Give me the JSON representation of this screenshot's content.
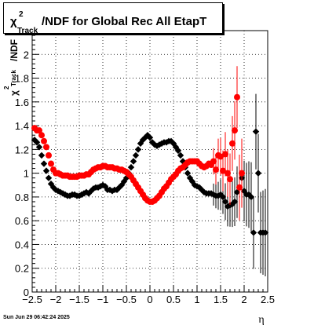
{
  "chart_data": {
    "type": "scatter",
    "title": {
      "base": "χ",
      "sup": "2",
      "sub": "Track",
      "rest": "/NDF for Global Rec All EtapT"
    },
    "ylabel": {
      "base": "χ",
      "sup": "2",
      "sub": "Track",
      "rest": "/NDF"
    },
    "xlabel": "η",
    "xlim": [
      -2.5,
      2.5
    ],
    "ylim": [
      0,
      2.2
    ],
    "xticks": [
      -2.5,
      -2,
      -1.5,
      -1,
      -0.5,
      0,
      0.5,
      1,
      1.5,
      2,
      2.5
    ],
    "xtick_labels": [
      "−2.5",
      "−2",
      "−1.5",
      "−1",
      "−0.5",
      "0",
      "0.5",
      "1",
      "1.5",
      "2",
      "2.5"
    ],
    "yticks": [
      0,
      0.2,
      0.4,
      0.6,
      0.8,
      1,
      1.2,
      1.4,
      1.6,
      1.8,
      2
    ],
    "ytick_labels": [
      "0",
      "0.2",
      "0.4",
      "0.6",
      "0.8",
      "1",
      "1.2",
      "1.4",
      "1.6",
      "1.8",
      "2"
    ],
    "grid": true,
    "series": [
      {
        "color": "#000000",
        "marker": "diamond",
        "points": [
          [
            -2.45,
            1.28
          ],
          [
            -2.4,
            1.26
          ],
          [
            -2.35,
            1.22
          ],
          [
            -2.3,
            1.15
          ],
          [
            -2.25,
            1.08
          ],
          [
            -2.2,
            1.02
          ],
          [
            -2.15,
            0.96
          ],
          [
            -2.1,
            0.91
          ],
          [
            -2.05,
            0.88
          ],
          [
            -2.0,
            0.86
          ],
          [
            -1.95,
            0.85
          ],
          [
            -1.9,
            0.84
          ],
          [
            -1.85,
            0.83
          ],
          [
            -1.8,
            0.82
          ],
          [
            -1.75,
            0.81
          ],
          [
            -1.7,
            0.81
          ],
          [
            -1.65,
            0.82
          ],
          [
            -1.6,
            0.82
          ],
          [
            -1.55,
            0.81
          ],
          [
            -1.5,
            0.81
          ],
          [
            -1.45,
            0.82
          ],
          [
            -1.4,
            0.83
          ],
          [
            -1.35,
            0.84
          ],
          [
            -1.3,
            0.83
          ],
          [
            -1.25,
            0.85
          ],
          [
            -1.2,
            0.87
          ],
          [
            -1.15,
            0.88
          ],
          [
            -1.1,
            0.88
          ],
          [
            -1.05,
            0.89
          ],
          [
            -1.0,
            0.9
          ],
          [
            -0.95,
            0.89
          ],
          [
            -0.9,
            0.86
          ],
          [
            -0.85,
            0.86
          ],
          [
            -0.8,
            0.85
          ],
          [
            -0.75,
            0.86
          ],
          [
            -0.7,
            0.86
          ],
          [
            -0.65,
            0.88
          ],
          [
            -0.6,
            0.9
          ],
          [
            -0.55,
            0.93
          ],
          [
            -0.5,
            0.96
          ],
          [
            -0.45,
            1.0
          ],
          [
            -0.4,
            1.05
          ],
          [
            -0.35,
            1.1
          ],
          [
            -0.3,
            1.15
          ],
          [
            -0.25,
            1.2
          ],
          [
            -0.2,
            1.25
          ],
          [
            -0.15,
            1.28
          ],
          [
            -0.1,
            1.3
          ],
          [
            -0.05,
            1.32
          ],
          [
            0.0,
            1.3
          ],
          [
            0.05,
            1.26
          ],
          [
            0.1,
            1.24
          ],
          [
            0.15,
            1.23
          ],
          [
            0.2,
            1.24
          ],
          [
            0.25,
            1.25
          ],
          [
            0.3,
            1.26
          ],
          [
            0.35,
            1.26
          ],
          [
            0.4,
            1.27
          ],
          [
            0.45,
            1.27
          ],
          [
            0.5,
            1.25
          ],
          [
            0.55,
            1.22
          ],
          [
            0.6,
            1.19
          ],
          [
            0.65,
            1.15
          ],
          [
            0.7,
            1.1
          ],
          [
            0.75,
            1.05
          ],
          [
            0.8,
            1.0
          ],
          [
            0.85,
            0.96
          ],
          [
            0.9,
            0.93
          ],
          [
            0.95,
            0.9
          ],
          [
            1.0,
            0.89
          ],
          [
            1.05,
            0.88
          ],
          [
            1.1,
            0.86
          ],
          [
            1.15,
            0.84
          ],
          [
            1.2,
            0.83
          ],
          [
            1.25,
            0.83
          ],
          [
            1.3,
            0.83
          ],
          [
            1.35,
            0.82
          ],
          [
            1.4,
            0.81
          ],
          [
            1.45,
            0.81
          ],
          [
            1.5,
            0.82
          ],
          [
            1.55,
            0.8
          ],
          [
            1.6,
            0.76
          ],
          [
            1.65,
            0.72
          ],
          [
            1.7,
            0.73
          ],
          [
            1.75,
            0.74
          ],
          [
            1.8,
            0.76
          ],
          [
            1.85,
            0.84
          ],
          [
            1.9,
            0.88
          ],
          [
            1.95,
            0.96
          ],
          [
            2.0,
            0.85
          ],
          [
            2.05,
            0.82
          ],
          [
            2.1,
            0.82
          ],
          [
            2.15,
            0.8
          ],
          [
            2.2,
            0.5
          ],
          [
            2.25,
            1.35
          ],
          [
            2.3,
            1.0
          ],
          [
            2.35,
            0.5
          ],
          [
            2.4,
            0.5
          ],
          [
            2.45,
            0.5
          ]
        ]
      },
      {
        "color": "#ff0000",
        "marker": "circle",
        "points": [
          [
            -2.45,
            1.38
          ],
          [
            -2.4,
            1.36
          ],
          [
            -2.35,
            1.36
          ],
          [
            -2.3,
            1.32
          ],
          [
            -2.25,
            1.27
          ],
          [
            -2.2,
            1.22
          ],
          [
            -2.15,
            1.15
          ],
          [
            -2.1,
            1.08
          ],
          [
            -2.05,
            1.03
          ],
          [
            -2.0,
            1.0
          ],
          [
            -1.95,
            1.0
          ],
          [
            -1.9,
            0.99
          ],
          [
            -1.85,
            0.98
          ],
          [
            -1.8,
            0.98
          ],
          [
            -1.75,
            0.98
          ],
          [
            -1.7,
            0.97
          ],
          [
            -1.65,
            0.97
          ],
          [
            -1.6,
            0.97
          ],
          [
            -1.55,
            0.97
          ],
          [
            -1.5,
            0.98
          ],
          [
            -1.45,
            0.98
          ],
          [
            -1.4,
            0.98
          ],
          [
            -1.35,
            0.99
          ],
          [
            -1.3,
            0.99
          ],
          [
            -1.25,
            1.01
          ],
          [
            -1.2,
            1.03
          ],
          [
            -1.15,
            1.04
          ],
          [
            -1.1,
            1.05
          ],
          [
            -1.05,
            1.05
          ],
          [
            -1.0,
            1.06
          ],
          [
            -0.95,
            1.06
          ],
          [
            -0.9,
            1.05
          ],
          [
            -0.85,
            1.05
          ],
          [
            -0.8,
            1.05
          ],
          [
            -0.75,
            1.04
          ],
          [
            -0.7,
            1.04
          ],
          [
            -0.65,
            1.03
          ],
          [
            -0.6,
            1.03
          ],
          [
            -0.55,
            1.02
          ],
          [
            -0.5,
            1.01
          ],
          [
            -0.45,
            0.99
          ],
          [
            -0.4,
            0.97
          ],
          [
            -0.35,
            0.94
          ],
          [
            -0.3,
            0.91
          ],
          [
            -0.25,
            0.88
          ],
          [
            -0.2,
            0.85
          ],
          [
            -0.15,
            0.82
          ],
          [
            -0.1,
            0.79
          ],
          [
            -0.05,
            0.77
          ],
          [
            0.0,
            0.76
          ],
          [
            0.05,
            0.76
          ],
          [
            0.1,
            0.77
          ],
          [
            0.15,
            0.79
          ],
          [
            0.2,
            0.81
          ],
          [
            0.25,
            0.84
          ],
          [
            0.3,
            0.87
          ],
          [
            0.35,
            0.89
          ],
          [
            0.4,
            0.92
          ],
          [
            0.45,
            0.95
          ],
          [
            0.5,
            0.97
          ],
          [
            0.55,
            0.99
          ],
          [
            0.6,
            1.02
          ],
          [
            0.65,
            1.04
          ],
          [
            0.7,
            1.05
          ],
          [
            0.75,
            1.07
          ],
          [
            0.8,
            1.09
          ],
          [
            0.85,
            1.1
          ],
          [
            0.9,
            1.1
          ],
          [
            0.95,
            1.1
          ],
          [
            1.0,
            1.1
          ],
          [
            1.05,
            1.08
          ],
          [
            1.1,
            1.06
          ],
          [
            1.15,
            1.05
          ],
          [
            1.2,
            1.06
          ],
          [
            1.25,
            1.08
          ],
          [
            1.3,
            1.07
          ],
          [
            1.35,
            1.1
          ],
          [
            1.4,
            1.03
          ],
          [
            1.45,
            1.15
          ],
          [
            1.5,
            1.14
          ],
          [
            1.55,
            1.02
          ],
          [
            1.6,
            1.16
          ],
          [
            1.65,
            1.0
          ],
          [
            1.7,
            0.95
          ],
          [
            1.75,
            1.25
          ],
          [
            1.8,
            1.36
          ],
          [
            1.85,
            1.64
          ],
          [
            1.9,
            0.88
          ],
          [
            1.95,
            1.0
          ]
        ]
      }
    ],
    "footer": "Sun Jun 29 06:42:24 2025"
  }
}
